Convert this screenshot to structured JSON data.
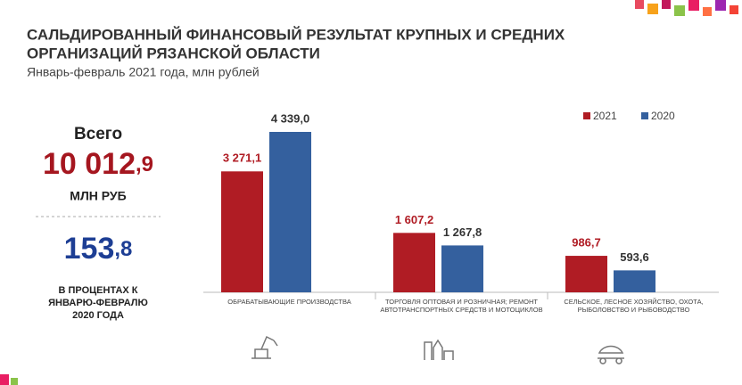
{
  "chart_data": {
    "type": "bar",
    "title_line1": "САЛЬДИРОВАННЫЙ ФИНАНСОВЫЙ РЕЗУЛЬТАТ КРУПНЫХ И СРЕДНИХ",
    "title_line2": "ОРГАНИЗАЦИЙ РЯЗАНСКОЙ ОБЛАСТИ",
    "subtitle": "Январь-февраль 2021 года, млн рублей",
    "categories": [
      "ОБРАБАТЫВАЮЩИЕ ПРОИЗВОДСТВА",
      "ТОРГОВЛЯ ОПТОВАЯ И РОЗНИЧНАЯ; РЕМОНТ АВТОТРАНСПОРТНЫХ СРЕДСТВ И МОТОЦИКЛОВ",
      "СЕЛЬСКОЕ, ЛЕСНОЕ ХОЗЯЙСТВО, ОХОТА, РЫБОЛОВСТВО И РЫБОВОДСТВО"
    ],
    "series": [
      {
        "name": "2021",
        "color": "#b01c24",
        "values": [
          3271.1,
          1607.2,
          986.7
        ],
        "value_labels": [
          "3 271,1",
          "1 607,2",
          "986,7"
        ]
      },
      {
        "name": "2020",
        "color": "#34609e",
        "values": [
          4339.0,
          1267.8,
          593.6
        ],
        "value_labels": [
          "4 339,0",
          "1 267,8",
          "593,6"
        ]
      }
    ],
    "legend": "top-right"
  },
  "summary": {
    "total_label": "Всего",
    "total_main": "10 012",
    "total_decimal": ",9",
    "total_unit": "МЛН РУБ",
    "percent_main": "153",
    "percent_decimal": ",8",
    "percent_note": [
      "В ПРОЦЕНТАХ К",
      "ЯНВАРЮ-ФЕВРАЛЮ",
      "2020 ГОДА"
    ]
  }
}
